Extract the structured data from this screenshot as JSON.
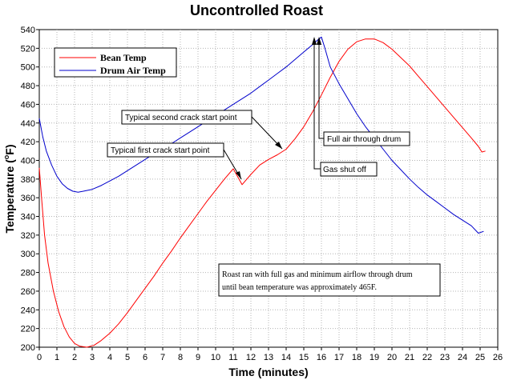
{
  "chart_data": {
    "type": "line",
    "title": "Uncontrolled Roast",
    "xlabel": "Time (minutes)",
    "ylabel_main": "Temperature (",
    "ylabel_deg": "o",
    "ylabel_end": "F)",
    "xlim": [
      0,
      26
    ],
    "ylim": [
      200,
      540
    ],
    "x_ticks": [
      "0",
      "1",
      "2",
      "3",
      "4",
      "5",
      "6",
      "7",
      "8",
      "9",
      "10",
      "11",
      "12",
      "13",
      "14",
      "15",
      "16",
      "17",
      "18",
      "19",
      "20",
      "21",
      "22",
      "23",
      "24",
      "25",
      "26"
    ],
    "y_ticks": [
      "200",
      "220",
      "240",
      "260",
      "280",
      "300",
      "320",
      "340",
      "360",
      "380",
      "400",
      "420",
      "440",
      "460",
      "480",
      "500",
      "520",
      "540"
    ],
    "grid": true,
    "legend_position": "top-left",
    "series": [
      {
        "name": "Bean Temp",
        "color": "#ff0000",
        "x": [
          0,
          0.15,
          0.3,
          0.5,
          0.8,
          1.1,
          1.4,
          1.7,
          2.0,
          2.3,
          2.7,
          3.1,
          3.5,
          4.0,
          4.5,
          5.0,
          5.5,
          6.0,
          6.5,
          7.0,
          7.5,
          8.0,
          8.5,
          9.0,
          9.5,
          10.0,
          10.5,
          11.0,
          11.5,
          12.0,
          12.5,
          13.0,
          13.5,
          14.0,
          14.5,
          15.0,
          15.5,
          16.0,
          16.5,
          17.0,
          17.5,
          18.0,
          18.5,
          19.0,
          19.5,
          20.0,
          20.5,
          21.0,
          21.5,
          22.0,
          22.5,
          23.0,
          23.5,
          24.0,
          24.5,
          24.9,
          25.1,
          25.3
        ],
        "y": [
          392,
          355,
          320,
          290,
          260,
          238,
          222,
          211,
          204,
          201,
          200,
          202,
          207,
          215,
          225,
          237,
          250,
          263,
          276,
          290,
          303,
          317,
          330,
          343,
          356,
          368,
          380,
          391,
          374,
          385,
          395,
          401,
          406,
          412,
          423,
          436,
          452,
          470,
          489,
          506,
          519,
          527,
          530,
          530,
          526,
          519,
          510,
          501,
          490,
          479,
          468,
          457,
          446,
          435,
          424,
          415,
          409,
          410
        ],
        "note": ""
      },
      {
        "name": "Drum Air Temp",
        "color": "#0000cc",
        "x": [
          0,
          0.2,
          0.4,
          0.7,
          1.0,
          1.3,
          1.6,
          1.9,
          2.2,
          2.5,
          3.0,
          3.5,
          4.0,
          4.5,
          5.0,
          5.5,
          6.0,
          6.5,
          7.0,
          7.5,
          8.0,
          8.5,
          9.0,
          9.5,
          10.0,
          10.5,
          11.0,
          11.5,
          12.0,
          12.5,
          13.0,
          13.5,
          14.0,
          14.5,
          15.0,
          15.5,
          15.8,
          16.0,
          16.2,
          16.5,
          17.0,
          17.5,
          18.0,
          18.5,
          19.0,
          19.5,
          20.0,
          20.5,
          21.0,
          21.5,
          22.0,
          22.5,
          23.0,
          23.5,
          24.0,
          24.5,
          24.9,
          25.2
        ],
        "y": [
          445,
          425,
          410,
          395,
          383,
          375,
          370,
          367,
          366,
          367,
          369,
          373,
          378,
          383,
          389,
          395,
          401,
          407,
          413,
          418,
          424,
          430,
          436,
          442,
          448,
          454,
          460,
          466,
          472,
          479,
          486,
          493,
          500,
          508,
          516,
          524,
          529,
          532,
          520,
          500,
          482,
          466,
          450,
          436,
          424,
          412,
          400,
          390,
          380,
          371,
          363,
          356,
          349,
          342,
          336,
          330,
          322,
          324
        ]
      }
    ],
    "annotations": [
      {
        "text": "Typical second crack start point",
        "target_x": 14.0,
        "target_y": 410
      },
      {
        "text": "Typical first crack start point",
        "target_x": 11.5,
        "target_y": 375
      },
      {
        "text": "Full air through drum",
        "target_x": 15.9,
        "target_y": 530
      },
      {
        "text": "Gas shut off",
        "target_x": 15.9,
        "target_y": 533
      },
      {
        "text": "Roast ran with full gas and minimum airflow through drum until bean temperature was approximately 465F.",
        "lines": [
          "Roast ran with full gas and minimum airflow through drum",
          "until bean temperature was approximately 465F."
        ]
      }
    ]
  }
}
